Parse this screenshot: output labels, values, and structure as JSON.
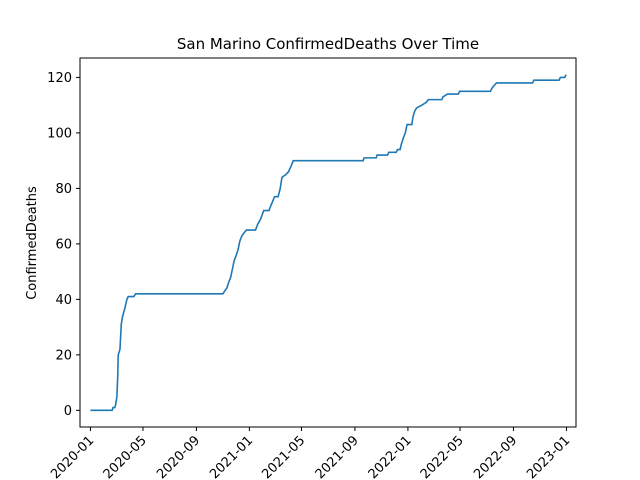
{
  "chart_data": {
    "type": "line",
    "title": "San Marino  ConfirmedDeaths Over Time",
    "xlabel": "",
    "ylabel": "ConfirmedDeaths",
    "xlim": [
      "2019-12-08",
      "2023-01-23"
    ],
    "ylim": [
      -6,
      127
    ],
    "grid": false,
    "line_color": "#1f77b4",
    "x_ticks": [
      {
        "date": "2020-01-01",
        "label": "2020-01"
      },
      {
        "date": "2020-05-01",
        "label": "2020-05"
      },
      {
        "date": "2020-09-01",
        "label": "2020-09"
      },
      {
        "date": "2021-01-01",
        "label": "2021-01"
      },
      {
        "date": "2021-05-01",
        "label": "2021-05"
      },
      {
        "date": "2021-09-01",
        "label": "2021-09"
      },
      {
        "date": "2022-01-01",
        "label": "2022-01"
      },
      {
        "date": "2022-05-01",
        "label": "2022-05"
      },
      {
        "date": "2022-09-01",
        "label": "2022-09"
      },
      {
        "date": "2023-01-01",
        "label": "2023-01"
      }
    ],
    "y_ticks": [
      0,
      20,
      40,
      60,
      80,
      100,
      120
    ],
    "series": [
      {
        "name": "",
        "points": [
          [
            "2020-01-01",
            0
          ],
          [
            "2020-02-20",
            0
          ],
          [
            "2020-02-22",
            1
          ],
          [
            "2020-02-26",
            1
          ],
          [
            "2020-02-28",
            2
          ],
          [
            "2020-03-01",
            4
          ],
          [
            "2020-03-02",
            5
          ],
          [
            "2020-03-04",
            13
          ],
          [
            "2020-03-05",
            20
          ],
          [
            "2020-03-07",
            21
          ],
          [
            "2020-03-09",
            22
          ],
          [
            "2020-03-12",
            31
          ],
          [
            "2020-03-14",
            33
          ],
          [
            "2020-03-17",
            35
          ],
          [
            "2020-03-19",
            36
          ],
          [
            "2020-03-22",
            38
          ],
          [
            "2020-03-25",
            40
          ],
          [
            "2020-03-28",
            41
          ],
          [
            "2020-04-05",
            41
          ],
          [
            "2020-04-10",
            41
          ],
          [
            "2020-04-14",
            42
          ],
          [
            "2020-11-01",
            42
          ],
          [
            "2020-11-05",
            43
          ],
          [
            "2020-11-10",
            44
          ],
          [
            "2020-11-14",
            46
          ],
          [
            "2020-11-19",
            48
          ],
          [
            "2020-11-23",
            51
          ],
          [
            "2020-11-27",
            54
          ],
          [
            "2020-12-02",
            56
          ],
          [
            "2020-12-06",
            58
          ],
          [
            "2020-12-10",
            61
          ],
          [
            "2020-12-15",
            63
          ],
          [
            "2020-12-20",
            64
          ],
          [
            "2020-12-25",
            65
          ],
          [
            "2021-01-15",
            65
          ],
          [
            "2021-01-20",
            67
          ],
          [
            "2021-01-27",
            69
          ],
          [
            "2021-02-03",
            72
          ],
          [
            "2021-02-15",
            72
          ],
          [
            "2021-02-20",
            74
          ],
          [
            "2021-02-28",
            77
          ],
          [
            "2021-03-08",
            77
          ],
          [
            "2021-03-13",
            80
          ],
          [
            "2021-03-17",
            84
          ],
          [
            "2021-03-26",
            85
          ],
          [
            "2021-04-01",
            86
          ],
          [
            "2021-04-07",
            88
          ],
          [
            "2021-04-12",
            90
          ],
          [
            "2021-09-20",
            90
          ],
          [
            "2021-09-22",
            91
          ],
          [
            "2021-10-20",
            91
          ],
          [
            "2021-10-22",
            92
          ],
          [
            "2021-11-15",
            92
          ],
          [
            "2021-11-18",
            93
          ],
          [
            "2021-12-05",
            93
          ],
          [
            "2021-12-08",
            94
          ],
          [
            "2021-12-14",
            94
          ],
          [
            "2021-12-17",
            96
          ],
          [
            "2021-12-21",
            98
          ],
          [
            "2021-12-26",
            100
          ],
          [
            "2021-12-30",
            103
          ],
          [
            "2022-01-10",
            103
          ],
          [
            "2022-01-13",
            106
          ],
          [
            "2022-01-17",
            108
          ],
          [
            "2022-01-21",
            109
          ],
          [
            "2022-02-02",
            110
          ],
          [
            "2022-02-12",
            111
          ],
          [
            "2022-02-17",
            112
          ],
          [
            "2022-03-20",
            112
          ],
          [
            "2022-03-23",
            113
          ],
          [
            "2022-04-02",
            114
          ],
          [
            "2022-04-27",
            114
          ],
          [
            "2022-04-30",
            115
          ],
          [
            "2022-07-10",
            115
          ],
          [
            "2022-07-13",
            116
          ],
          [
            "2022-07-18",
            117
          ],
          [
            "2022-07-24",
            118
          ],
          [
            "2022-10-15",
            118
          ],
          [
            "2022-10-18",
            119
          ],
          [
            "2022-12-15",
            119
          ],
          [
            "2022-12-18",
            120
          ],
          [
            "2022-12-28",
            120
          ],
          [
            "2022-12-31",
            121
          ]
        ]
      }
    ]
  }
}
